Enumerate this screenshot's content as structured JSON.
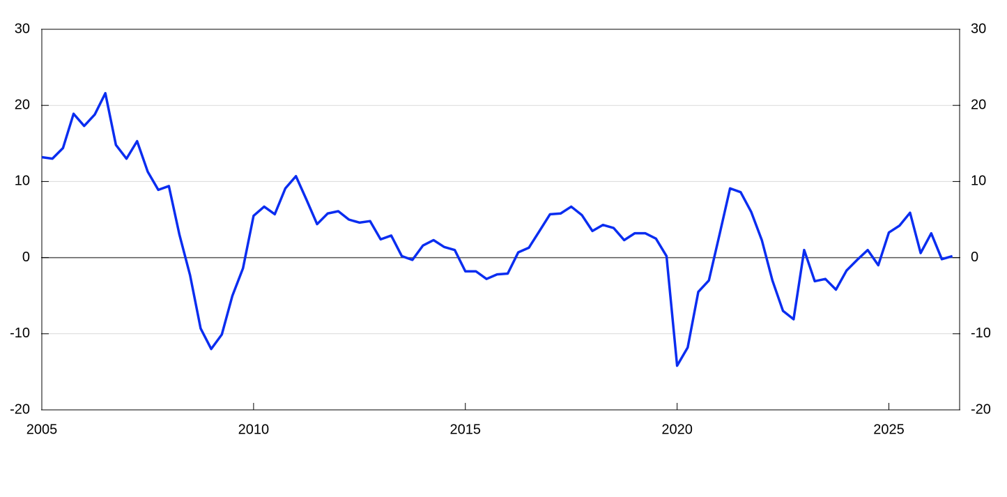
{
  "chart_data": {
    "type": "line",
    "x": [
      2005,
      2005.25,
      2005.5,
      2005.75,
      2006,
      2006.25,
      2006.5,
      2006.75,
      2007,
      2007.25,
      2007.5,
      2007.75,
      2008,
      2008.25,
      2008.5,
      2008.75,
      2009,
      2009.25,
      2009.5,
      2009.75,
      2010,
      2010.25,
      2010.5,
      2010.75,
      2011,
      2011.25,
      2011.5,
      2011.75,
      2012,
      2012.25,
      2012.5,
      2012.75,
      2013,
      2013.25,
      2013.5,
      2013.75,
      2014,
      2014.25,
      2014.5,
      2014.75,
      2015,
      2015.25,
      2015.5,
      2015.75,
      2016,
      2016.25,
      2016.5,
      2016.75,
      2017,
      2017.25,
      2017.5,
      2017.75,
      2018,
      2018.25,
      2018.5,
      2018.75,
      2019,
      2019.25,
      2019.5,
      2019.75,
      2020,
      2020.25,
      2020.5,
      2020.75,
      2021,
      2021.25,
      2021.5,
      2021.75,
      2022,
      2022.25,
      2022.5,
      2022.75,
      2023,
      2023.25,
      2023.5,
      2023.75,
      2024,
      2024.25,
      2024.5,
      2024.75,
      2025,
      2025.25,
      2025.5,
      2025.75,
      2026,
      2026.25,
      2026.5
    ],
    "series": [
      {
        "color": "#0a2df0",
        "values": [
          13.2,
          13.0,
          14.4,
          18.9,
          17.3,
          18.8,
          21.6,
          14.8,
          13.0,
          15.3,
          11.3,
          8.9,
          9.4,
          3.0,
          -2.3,
          -9.3,
          -12.0,
          -10.1,
          -5.0,
          -1.4,
          5.5,
          6.7,
          5.7,
          9.1,
          10.7,
          7.6,
          4.4,
          5.8,
          6.1,
          5.0,
          4.6,
          4.8,
          2.4,
          2.9,
          0.2,
          -0.3,
          1.6,
          2.3,
          1.4,
          1.0,
          -1.8,
          -1.8,
          -2.8,
          -2.2,
          -2.1,
          0.7,
          1.3,
          3.5,
          5.7,
          5.8,
          6.7,
          5.6,
          3.5,
          4.3,
          3.9,
          2.3,
          3.2,
          3.2,
          2.5,
          0.2,
          -14.2,
          -11.8,
          -4.5,
          -3.0,
          3.0,
          9.1,
          8.6,
          6.0,
          2.3,
          -3.0,
          -7.0,
          -8.1,
          1.0,
          -3.1,
          -2.8,
          -4.2,
          -1.7,
          -0.3,
          1.0,
          -1.0,
          3.3,
          4.2,
          5.9,
          0.6,
          3.2,
          -0.2,
          0.2
        ]
      }
    ],
    "xlim": [
      2005,
      2026.67
    ],
    "xticks": [
      2005,
      2010,
      2015,
      2020,
      2025
    ],
    "ylim": [
      -20,
      30
    ],
    "yticks": [
      -20,
      -10,
      0,
      10,
      20,
      30
    ],
    "y2lim": [
      -20,
      30
    ],
    "y2ticks": [
      -20,
      -10,
      0,
      10,
      20,
      30
    ],
    "grid": true
  }
}
